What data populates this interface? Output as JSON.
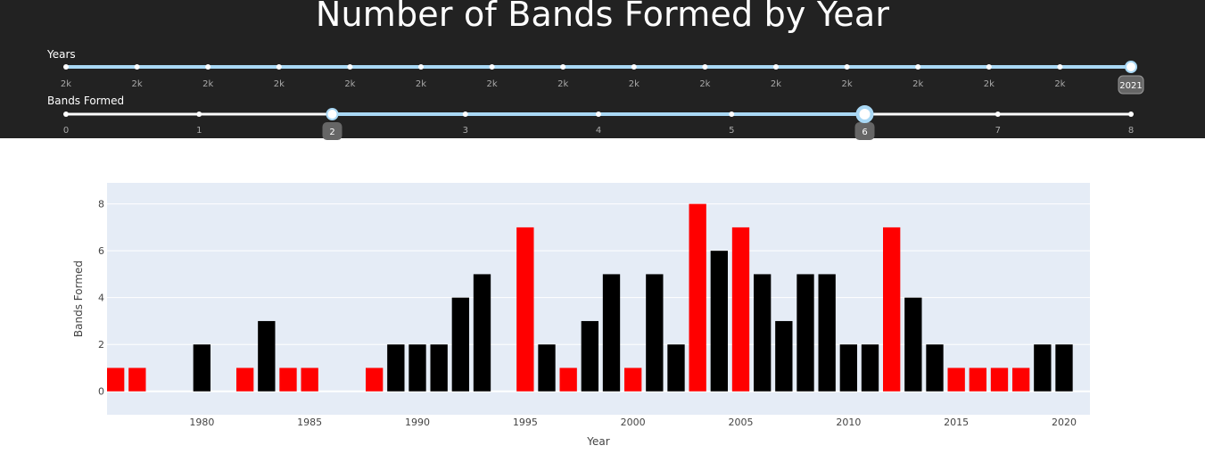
{
  "title": "Number of Bands Formed by Year",
  "sliders": {
    "years": {
      "label": "Years",
      "tick_labels": [
        "2k",
        "2k",
        "2k",
        "2k",
        "2k",
        "2k",
        "2k",
        "2k",
        "2k",
        "2k",
        "2k",
        "2k",
        "2k",
        "2k",
        "2k",
        "2021"
      ],
      "value_badge": "2021",
      "handle_index": 15
    },
    "bands": {
      "label": "Bands Formed",
      "tick_labels": [
        "0",
        "1",
        "2",
        "3",
        "4",
        "5",
        "6",
        "7",
        "8"
      ],
      "range": [
        2,
        6
      ],
      "low_badge": "2",
      "high_badge": "6"
    }
  },
  "colors": {
    "panel_bg": "#222222",
    "track": "#ffffff",
    "track_active": "#a9d8f5",
    "badge_bg": "#666666",
    "plot_bg": "#e5ecf6",
    "in_range": "#000000",
    "out_of_range": "#ff0000"
  },
  "chart_data": {
    "type": "bar",
    "title": "",
    "xlabel": "Year",
    "ylabel": "Bands Formed",
    "xlim": [
      1975.6,
      2021.2
    ],
    "ylim": [
      -1,
      8.9
    ],
    "x_ticks": [
      1980,
      1985,
      1990,
      1995,
      2000,
      2005,
      2010,
      2015,
      2020
    ],
    "y_ticks": [
      0,
      2,
      4,
      6,
      8
    ],
    "grid": true,
    "x": [
      1976,
      1977,
      1980,
      1982,
      1983,
      1984,
      1985,
      1988,
      1989,
      1990,
      1991,
      1992,
      1993,
      1995,
      1996,
      1997,
      1998,
      1999,
      2000,
      2001,
      2002,
      2003,
      2004,
      2005,
      2006,
      2007,
      2008,
      2009,
      2010,
      2011,
      2012,
      2013,
      2014,
      2015,
      2016,
      2017,
      2018,
      2019,
      2020
    ],
    "values": [
      1,
      1,
      2,
      1,
      3,
      1,
      1,
      1,
      2,
      2,
      2,
      4,
      5,
      7,
      2,
      1,
      3,
      5,
      1,
      5,
      2,
      8,
      6,
      7,
      5,
      3,
      5,
      5,
      2,
      2,
      7,
      4,
      2,
      1,
      1,
      1,
      1,
      2,
      2
    ],
    "highlight_range": [
      2,
      6
    ]
  }
}
